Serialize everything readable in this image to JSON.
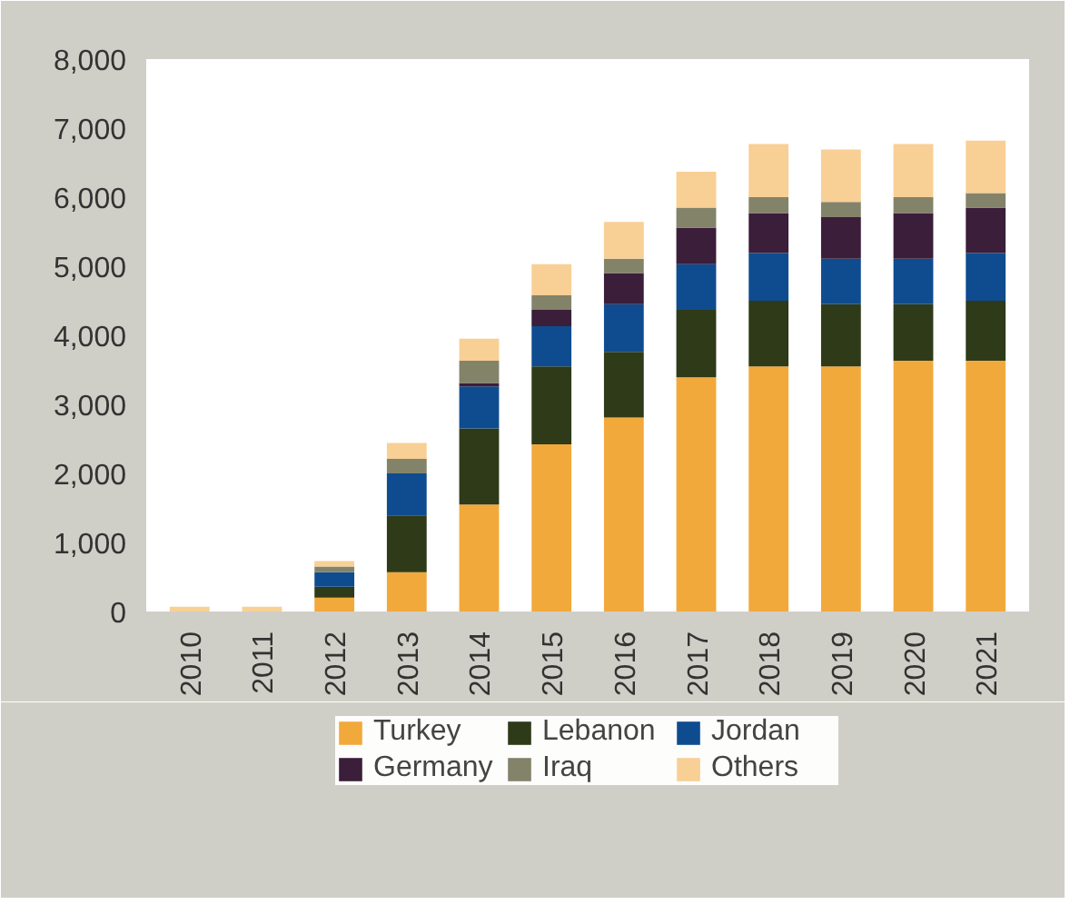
{
  "chart_data": {
    "type": "bar",
    "stacked": true,
    "categories": [
      "2010",
      "2011",
      "2012",
      "2013",
      "2014",
      "2015",
      "2016",
      "2017",
      "2018",
      "2019",
      "2020",
      "2021"
    ],
    "series": [
      {
        "name": "Turkey",
        "color": "#f2a93b",
        "values": [
          0,
          0,
          200,
          570,
          1550,
          2420,
          2810,
          3390,
          3550,
          3550,
          3630,
          3630
        ]
      },
      {
        "name": "Lebanon",
        "color": "#2e3a18",
        "values": [
          0,
          0,
          160,
          820,
          1100,
          1130,
          950,
          980,
          950,
          900,
          820,
          870
        ]
      },
      {
        "name": "Jordan",
        "color": "#0f4c8f",
        "values": [
          0,
          0,
          210,
          610,
          610,
          580,
          690,
          660,
          690,
          660,
          660,
          690
        ]
      },
      {
        "name": "Germany",
        "color": "#3b1e3a",
        "values": [
          0,
          0,
          0,
          0,
          50,
          240,
          450,
          530,
          580,
          600,
          660,
          660
        ]
      },
      {
        "name": "Iraq",
        "color": "#83836a",
        "values": [
          0,
          0,
          80,
          210,
          320,
          210,
          210,
          290,
          230,
          220,
          230,
          210
        ]
      },
      {
        "name": "Others",
        "color": "#f8cf95",
        "values": [
          70,
          70,
          80,
          230,
          320,
          450,
          530,
          520,
          770,
          760,
          770,
          760
        ]
      }
    ],
    "ylim": [
      0,
      8000
    ],
    "yticks": [
      0,
      {
        "value": 1000,
        "label": "1,000"
      },
      {
        "value": 2000,
        "label": "2,000"
      },
      {
        "value": 3000,
        "label": "3,000"
      },
      {
        "value": 4000,
        "label": "4,000"
      },
      {
        "value": 5000,
        "label": "5,000"
      },
      {
        "value": 6000,
        "label": "6,000"
      },
      {
        "value": 7000,
        "label": "7,000"
      },
      {
        "value": 8000,
        "label": "8,000"
      }
    ],
    "grid": false,
    "legend": "bottom"
  }
}
